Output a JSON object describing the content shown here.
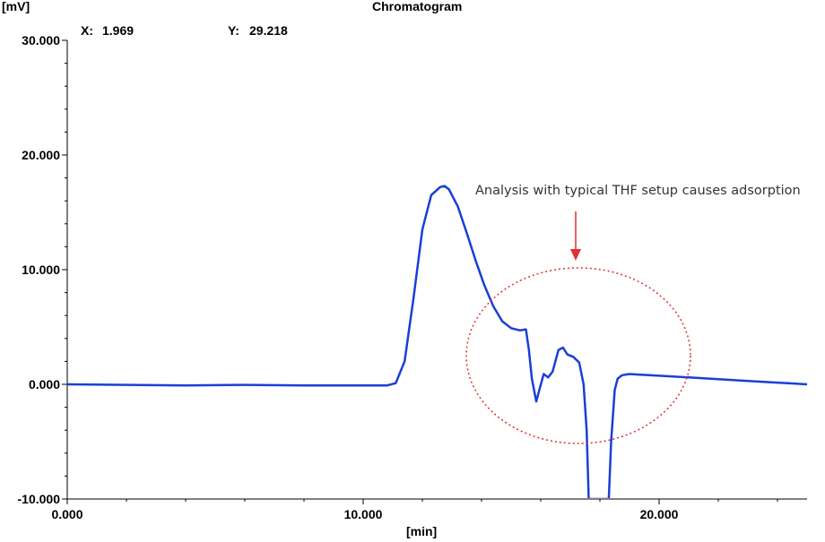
{
  "header": {
    "title": "Chromatogram",
    "y_unit": "[mV]",
    "cursor": {
      "x_label": "X:",
      "x_value": "1.969",
      "y_label": "Y:",
      "y_value": "29.218"
    }
  },
  "annotation": {
    "text": "Analysis with typical THF setup causes adsorption",
    "color": "#e03030"
  },
  "chart_data": {
    "type": "line",
    "title": "Chromatogram",
    "xlabel": "[min]",
    "ylabel": "[mV]",
    "xlim": [
      0,
      25
    ],
    "ylim": [
      -10,
      30
    ],
    "xticks": [
      0,
      10,
      20
    ],
    "xtick_labels": [
      "0.000",
      "10.000",
      "20.000"
    ],
    "yticks": [
      30,
      20,
      10,
      0,
      -10
    ],
    "ytick_labels": [
      "30.000",
      "20.000",
      "10.000",
      "0.000",
      "-10.000"
    ],
    "grid": false,
    "series_color": "#1a3fd6",
    "series": [
      {
        "x": [
          0,
          2,
          4,
          6,
          8,
          10,
          10.8,
          11.1,
          11.4,
          11.7,
          12.0,
          12.3,
          12.6,
          12.75,
          12.9,
          13.2,
          13.5,
          13.8,
          14.1,
          14.4,
          14.7,
          15.0,
          15.3,
          15.5,
          15.6,
          15.7,
          15.85,
          15.95,
          16.1,
          16.25,
          16.4,
          16.6,
          16.75,
          16.9,
          17.1,
          17.3,
          17.45,
          17.55,
          17.62,
          18.3,
          18.38,
          18.5,
          18.6,
          18.75,
          19.0,
          19.3,
          20.0,
          21.0,
          22.0,
          23.0,
          24.0,
          25.0
        ],
        "y": [
          0.0,
          -0.05,
          -0.1,
          -0.05,
          -0.1,
          -0.1,
          -0.1,
          0.1,
          2.0,
          7.5,
          13.5,
          16.5,
          17.2,
          17.3,
          17.0,
          15.5,
          13.2,
          10.8,
          8.6,
          6.8,
          5.5,
          4.9,
          4.7,
          4.8,
          3.0,
          0.5,
          -1.5,
          -0.5,
          0.9,
          0.6,
          1.1,
          3.0,
          3.2,
          2.6,
          2.4,
          1.9,
          0.0,
          -4.0,
          -10.0,
          -10.0,
          -5.0,
          -0.5,
          0.5,
          0.8,
          0.9,
          0.85,
          0.75,
          0.6,
          0.45,
          0.3,
          0.15,
          0.0
        ]
      }
    ]
  }
}
